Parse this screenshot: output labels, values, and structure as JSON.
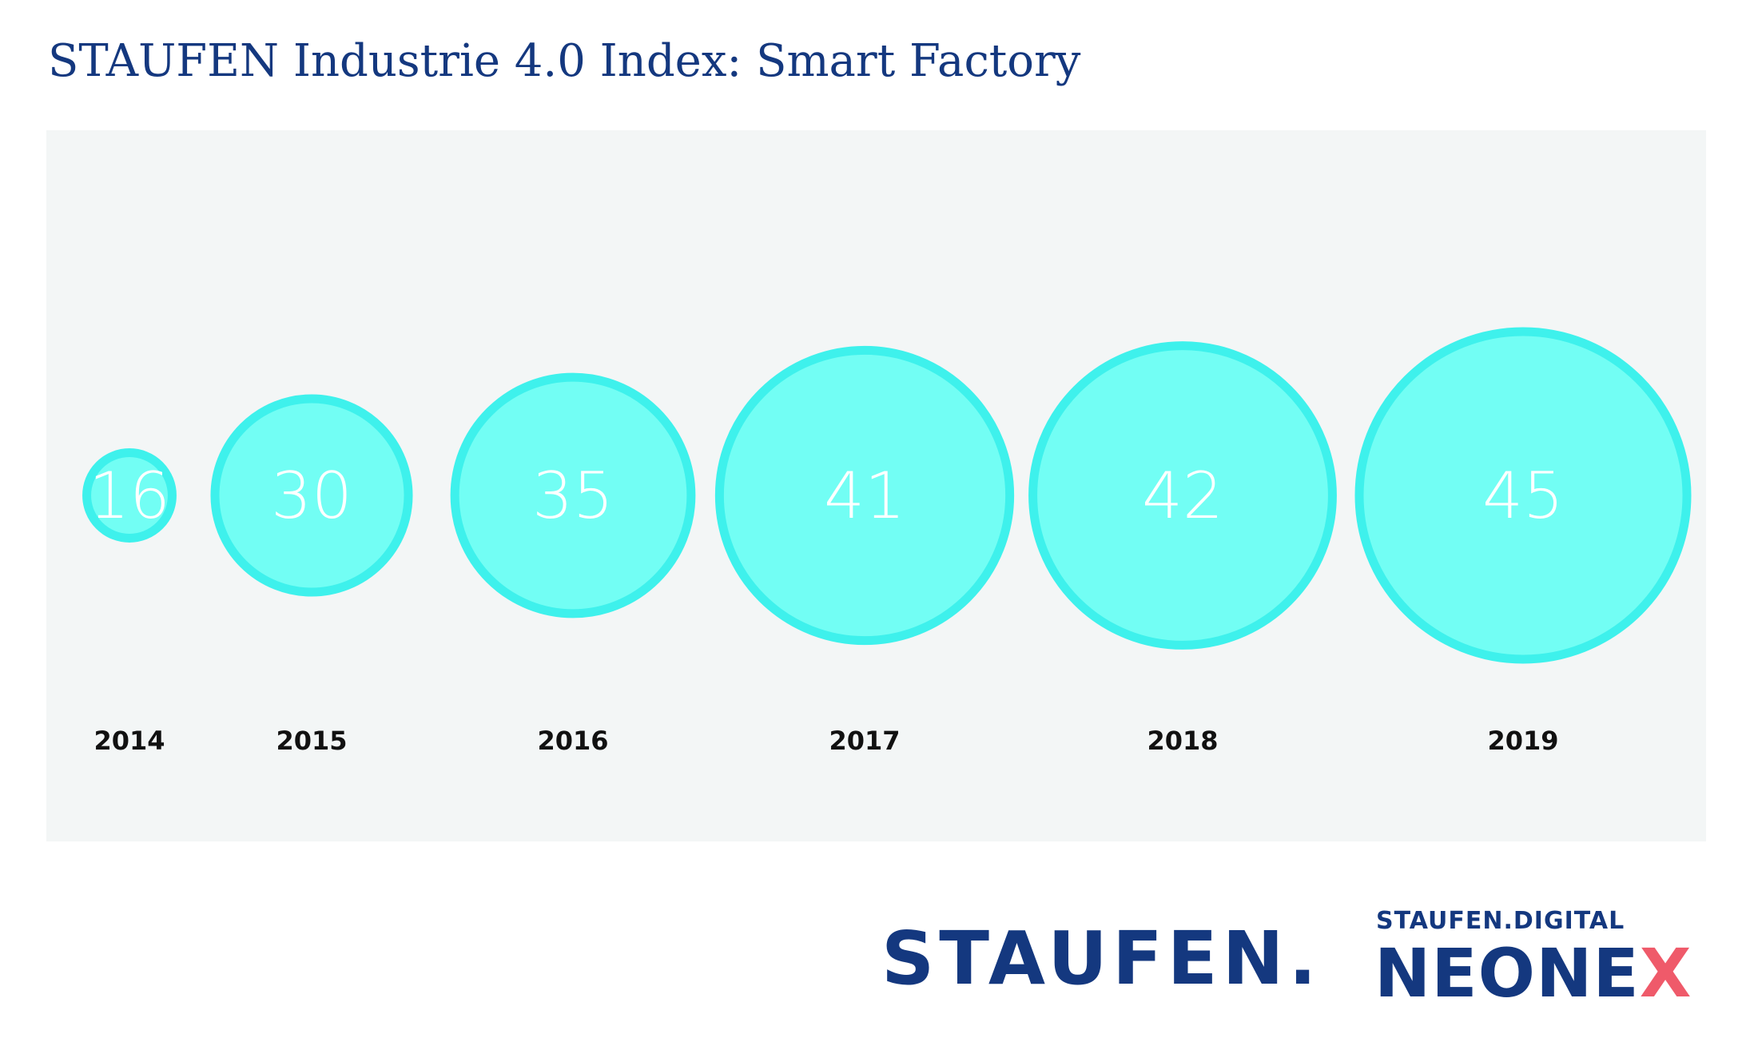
{
  "chart_data": {
    "type": "bubble",
    "title": "STAUFEN Industrie 4.0 Index: Smart Factory",
    "categories": [
      "2014",
      "2015",
      "2016",
      "2017",
      "2018",
      "2019"
    ],
    "values": [
      16,
      30,
      35,
      41,
      42,
      45
    ],
    "value_labels": [
      "16",
      "30",
      "35",
      "41",
      "42",
      "45"
    ],
    "bubble_fill": "#72fef4",
    "bubble_stroke": "#3ef1ec",
    "label_color": "#ffffff",
    "panel_background": "#f3f6f6",
    "legend": "none",
    "grid": false
  },
  "branding": {
    "staufen_logo": "STAUFEN.",
    "digital_label": "STAUFEN.DIGITAL",
    "neonex_logo_main": "NEONE",
    "neonex_logo_accent": "X",
    "brand_color": "#14387f",
    "accent_color": "#ef5a6a"
  }
}
